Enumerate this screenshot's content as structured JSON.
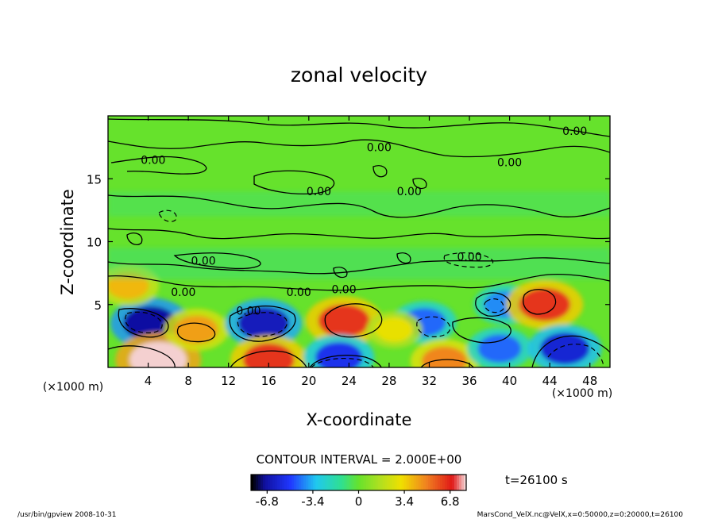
{
  "chart_data": {
    "type": "heatmap",
    "title": "zonal velocity",
    "xlabel": "X-coordinate",
    "ylabel": "Z-coordinate",
    "x_unit_left": "(×1000 m)",
    "x_unit_right": "(×1000 m)",
    "xlim": [
      0,
      50
    ],
    "ylim": [
      0,
      20
    ],
    "x_ticks": [
      4,
      8,
      12,
      16,
      20,
      24,
      28,
      32,
      36,
      40,
      44,
      48
    ],
    "y_ticks": [
      5,
      10,
      15
    ],
    "contour_labels": [
      "0.00",
      "0.00",
      "0.00",
      "0.00",
      "0.00",
      "0.00",
      "0.00",
      "0.00",
      "0.00",
      "0.00",
      "0.00",
      "0.00"
    ],
    "contour_interval_text": "CONTOUR INTERVAL = 2.000E+00",
    "time_text": "t=26100 s",
    "colorbar": {
      "range": [
        -8,
        8
      ],
      "ticks": [
        -6.8,
        -3.4,
        0,
        3.4,
        6.8
      ],
      "tick_labels": [
        "-6.8",
        "-3.4",
        "0",
        "3.4",
        "6.8"
      ]
    },
    "features": [
      {
        "x": 4.2,
        "z": 3.5,
        "value": -7.0
      },
      {
        "x": 5.0,
        "z": 0.6,
        "value": 8.0
      },
      {
        "x": 8.8,
        "z": 3.0,
        "value": 4.5
      },
      {
        "x": 15.5,
        "z": 3.5,
        "value": -6.5
      },
      {
        "x": 16.0,
        "z": 0.6,
        "value": 6.5
      },
      {
        "x": 23.5,
        "z": 3.7,
        "value": 6.5
      },
      {
        "x": 23.0,
        "z": 0.8,
        "value": -5.5
      },
      {
        "x": 31.5,
        "z": 3.6,
        "value": -4.5
      },
      {
        "x": 33.5,
        "z": 0.5,
        "value": 5.0
      },
      {
        "x": 39.0,
        "z": 1.5,
        "value": -4.5
      },
      {
        "x": 39.5,
        "z": 5.0,
        "value": -4.0
      },
      {
        "x": 43.5,
        "z": 5.0,
        "value": 6.5
      },
      {
        "x": 45.5,
        "z": 1.5,
        "value": -6.0
      },
      {
        "x": 2.0,
        "z": 6.5,
        "value": 4.0
      },
      {
        "x": 28.5,
        "z": 3.0,
        "value": 3.0
      }
    ],
    "colors": {
      "negative": "#1a1acd",
      "zero": "#66e22c",
      "positive": "#e02020"
    }
  },
  "footer": {
    "left": "/usr/bin/gpview   2008-10-31",
    "right": "MarsCond_VelX.nc@VelX,x=0:50000,z=0:20000,t=26100"
  }
}
